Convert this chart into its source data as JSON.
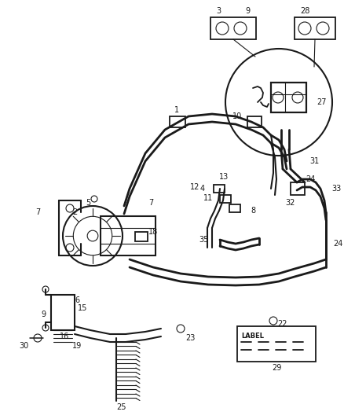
{
  "bg_color": "#ffffff",
  "line_color": "#1a1a1a",
  "lw": 1.5,
  "tlw": 0.8,
  "fs": 7.0
}
